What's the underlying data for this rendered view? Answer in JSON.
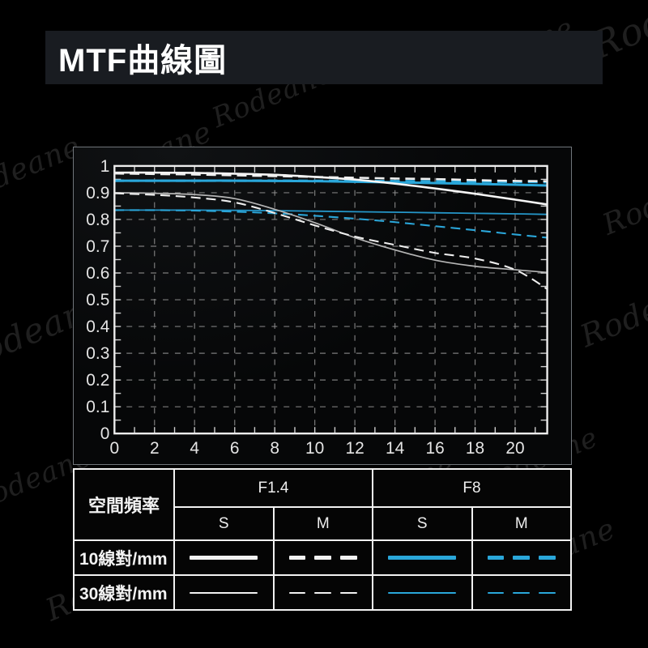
{
  "title": "MTF曲線圖",
  "watermark": {
    "text": "Rodeane"
  },
  "colors": {
    "blue": "#2aa7da",
    "white": "#f2f2f2",
    "grid": "#909090",
    "axis": "#ededed"
  },
  "chart_data": {
    "type": "line",
    "title": "MTF曲線圖",
    "xlabel": "",
    "ylabel": "",
    "xlim": [
      0,
      21.6
    ],
    "ylim": [
      0,
      1
    ],
    "grid": true,
    "x_ticks": [
      "0",
      "2",
      "4",
      "6",
      "8",
      "10",
      "12",
      "14",
      "16",
      "18",
      "20"
    ],
    "y_ticks": [
      "1",
      "0.9",
      "0.8",
      "0.7",
      "0.6",
      "0.5",
      "0.4",
      "0.3",
      "0.2",
      "0.1",
      "0"
    ],
    "x": [
      0,
      2,
      4,
      6,
      8,
      10,
      12,
      14,
      16,
      18,
      20,
      21.6
    ],
    "series": [
      {
        "name": "F8 S 10線對/mm",
        "aperture": "F8",
        "frequency": "10線對/mm",
        "component": "S",
        "style": "solid",
        "color": "#2aa7da",
        "width": 3,
        "values": [
          0.945,
          0.945,
          0.945,
          0.945,
          0.944,
          0.943,
          0.941,
          0.939,
          0.936,
          0.933,
          0.93,
          0.927
        ]
      },
      {
        "name": "F8 M 10線對/mm",
        "aperture": "F8",
        "frequency": "10線對/mm",
        "component": "M",
        "style": "dashed",
        "color": "#2aa7da",
        "width": 3,
        "values": [
          0.945,
          0.945,
          0.945,
          0.945,
          0.945,
          0.9445,
          0.944,
          0.9435,
          0.9425,
          0.9415,
          0.9405,
          0.9395
        ]
      },
      {
        "name": "F8 S 30線對/mm",
        "aperture": "F8",
        "frequency": "30線對/mm",
        "component": "S",
        "style": "solid",
        "color": "#2596c8",
        "width": 1.8,
        "values": [
          0.835,
          0.835,
          0.835,
          0.834,
          0.833,
          0.831,
          0.829,
          0.827,
          0.825,
          0.823,
          0.821,
          0.819
        ]
      },
      {
        "name": "F8 M 30線對/mm",
        "aperture": "F8",
        "frequency": "30線對/mm",
        "component": "M",
        "style": "dashed",
        "color": "#2aa5d8",
        "width": 2.1,
        "values": [
          0.835,
          0.835,
          0.833,
          0.829,
          0.823,
          0.814,
          0.803,
          0.79,
          0.775,
          0.76,
          0.744,
          0.732
        ]
      },
      {
        "name": "F1.4 S 30線對/mm",
        "aperture": "F1.4",
        "frequency": "30線對/mm",
        "component": "S",
        "style": "solid",
        "color": "#b5b5b5",
        "width": 1.7,
        "values": [
          0.9,
          0.898,
          0.893,
          0.878,
          0.838,
          0.788,
          0.732,
          0.686,
          0.648,
          0.625,
          0.612,
          0.602
        ]
      },
      {
        "name": "F1.4 M 30線對/mm",
        "aperture": "F1.4",
        "frequency": "30線對/mm",
        "component": "M",
        "style": "dashed",
        "color": "#eeeeee",
        "width": 2.1,
        "values": [
          0.898,
          0.892,
          0.882,
          0.864,
          0.824,
          0.778,
          0.736,
          0.705,
          0.675,
          0.654,
          0.612,
          0.54
        ]
      },
      {
        "name": "F1.4 S 10線對/mm",
        "aperture": "F1.4",
        "frequency": "10線對/mm",
        "component": "S",
        "style": "solid",
        "color": "#f5f5f5",
        "width": 2.6,
        "values": [
          0.975,
          0.975,
          0.974,
          0.971,
          0.967,
          0.959,
          0.949,
          0.934,
          0.916,
          0.896,
          0.874,
          0.856
        ]
      },
      {
        "name": "F1.4 M 10線對/mm",
        "aperture": "F1.4",
        "frequency": "10線對/mm",
        "component": "M",
        "style": "dashed",
        "color": "#f0f0f0",
        "width": 2.6,
        "values": [
          0.972,
          0.97,
          0.968,
          0.965,
          0.962,
          0.959,
          0.956,
          0.953,
          0.951,
          0.947,
          0.944,
          0.943
        ]
      }
    ]
  },
  "legend_table": {
    "row_header": "空間頻率",
    "col_groups": [
      "F1.4",
      "F8"
    ],
    "sub_cols": [
      "S",
      "M",
      "S",
      "M"
    ],
    "rows": [
      {
        "label": "10線對/mm",
        "samples": [
          {
            "color": "white",
            "style": "solid",
            "weight": "thick"
          },
          {
            "color": "white",
            "style": "dashed",
            "weight": "thick"
          },
          {
            "color": "blue",
            "style": "solid",
            "weight": "thick"
          },
          {
            "color": "blue",
            "style": "dashed",
            "weight": "thick"
          }
        ]
      },
      {
        "label": "30線對/mm",
        "samples": [
          {
            "color": "white",
            "style": "solid",
            "weight": "thin"
          },
          {
            "color": "white",
            "style": "dashed",
            "weight": "thin"
          },
          {
            "color": "blue",
            "style": "solid",
            "weight": "thin"
          },
          {
            "color": "blue",
            "style": "dashed",
            "weight": "thin"
          }
        ]
      }
    ]
  }
}
